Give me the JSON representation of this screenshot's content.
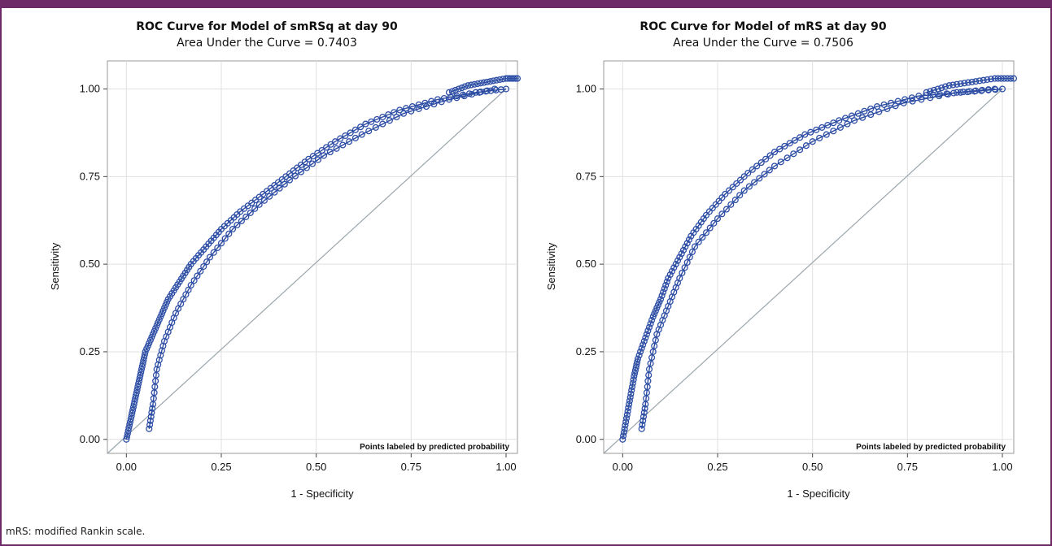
{
  "footnote": "mRS: modified Rankin scale.",
  "chart_data": [
    {
      "type": "scatter",
      "title": "ROC Curve for Model of smRSq at day 90",
      "subtitle": "Area Under the Curve = 0.7403",
      "xlabel": "1 - Specificity",
      "ylabel": "Sensitivity",
      "xlim": [
        -0.05,
        1.03
      ],
      "ylim": [
        -0.04,
        1.08
      ],
      "xticks": [
        "0.00",
        "0.25",
        "0.50",
        "0.75",
        "1.00"
      ],
      "yticks": [
        "0.00",
        "0.25",
        "0.50",
        "0.75",
        "1.00"
      ],
      "grid": true,
      "note": "Points labeled by predicted probability",
      "reference_line": [
        [
          0,
          0
        ],
        [
          1,
          1
        ]
      ],
      "series": [
        {
          "points": [
            [
              0.0,
              0.0
            ],
            [
              0.01,
              0.05
            ],
            [
              0.02,
              0.1
            ],
            [
              0.03,
              0.15
            ],
            [
              0.04,
              0.2
            ],
            [
              0.05,
              0.25
            ],
            [
              0.07,
              0.3
            ],
            [
              0.09,
              0.35
            ],
            [
              0.11,
              0.4
            ],
            [
              0.14,
              0.45
            ],
            [
              0.17,
              0.5
            ],
            [
              0.21,
              0.55
            ],
            [
              0.25,
              0.6
            ],
            [
              0.3,
              0.65
            ],
            [
              0.36,
              0.7
            ],
            [
              0.42,
              0.75
            ],
            [
              0.48,
              0.8
            ],
            [
              0.55,
              0.85
            ],
            [
              0.63,
              0.9
            ],
            [
              0.72,
              0.94
            ],
            [
              0.82,
              0.97
            ],
            [
              0.92,
              0.99
            ],
            [
              1.0,
              1.0
            ]
          ],
          "band": [
            [
              0.06,
              0.03
            ],
            [
              0.07,
              0.1
            ],
            [
              0.08,
              0.2
            ],
            [
              0.1,
              0.28
            ],
            [
              0.13,
              0.36
            ],
            [
              0.17,
              0.44
            ],
            [
              0.22,
              0.52
            ],
            [
              0.28,
              0.6
            ],
            [
              0.35,
              0.67
            ],
            [
              0.43,
              0.74
            ],
            [
              0.52,
              0.81
            ],
            [
              0.62,
              0.87
            ],
            [
              0.73,
              0.93
            ],
            [
              0.85,
              0.97
            ],
            [
              0.97,
              1.0
            ]
          ],
          "upper_tail": [
            [
              0.85,
              0.99
            ],
            [
              0.9,
              1.01
            ],
            [
              0.95,
              1.02
            ],
            [
              1.0,
              1.03
            ],
            [
              1.03,
              1.03
            ]
          ]
        }
      ]
    },
    {
      "type": "scatter",
      "title": "ROC Curve for Model of mRS at day 90",
      "subtitle": "Area Under the Curve = 0.7506",
      "xlabel": "1 - Specificity",
      "ylabel": "Sensitivity",
      "xlim": [
        -0.05,
        1.03
      ],
      "ylim": [
        -0.04,
        1.08
      ],
      "xticks": [
        "0.00",
        "0.25",
        "0.50",
        "0.75",
        "1.00"
      ],
      "yticks": [
        "0.00",
        "0.25",
        "0.50",
        "0.75",
        "1.00"
      ],
      "grid": true,
      "note": "Points labeled by predicted probability",
      "reference_line": [
        [
          0,
          0
        ],
        [
          1,
          1
        ]
      ],
      "series": [
        {
          "points": [
            [
              0.0,
              0.0
            ],
            [
              0.01,
              0.06
            ],
            [
              0.02,
              0.12
            ],
            [
              0.03,
              0.18
            ],
            [
              0.04,
              0.23
            ],
            [
              0.06,
              0.29
            ],
            [
              0.08,
              0.35
            ],
            [
              0.1,
              0.4
            ],
            [
              0.12,
              0.46
            ],
            [
              0.15,
              0.52
            ],
            [
              0.18,
              0.58
            ],
            [
              0.22,
              0.64
            ],
            [
              0.27,
              0.7
            ],
            [
              0.33,
              0.76
            ],
            [
              0.4,
              0.82
            ],
            [
              0.48,
              0.87
            ],
            [
              0.57,
              0.91
            ],
            [
              0.67,
              0.95
            ],
            [
              0.78,
              0.98
            ],
            [
              0.89,
              0.99
            ],
            [
              1.0,
              1.0
            ]
          ],
          "band": [
            [
              0.05,
              0.03
            ],
            [
              0.06,
              0.1
            ],
            [
              0.07,
              0.2
            ],
            [
              0.09,
              0.3
            ],
            [
              0.12,
              0.38
            ],
            [
              0.15,
              0.46
            ],
            [
              0.19,
              0.55
            ],
            [
              0.25,
              0.63
            ],
            [
              0.32,
              0.71
            ],
            [
              0.4,
              0.78
            ],
            [
              0.5,
              0.85
            ],
            [
              0.61,
              0.91
            ],
            [
              0.74,
              0.96
            ],
            [
              0.88,
              0.99
            ],
            [
              0.98,
              1.0
            ]
          ],
          "upper_tail": [
            [
              0.8,
              0.99
            ],
            [
              0.86,
              1.01
            ],
            [
              0.92,
              1.02
            ],
            [
              0.98,
              1.03
            ],
            [
              1.03,
              1.03
            ]
          ]
        }
      ]
    }
  ]
}
